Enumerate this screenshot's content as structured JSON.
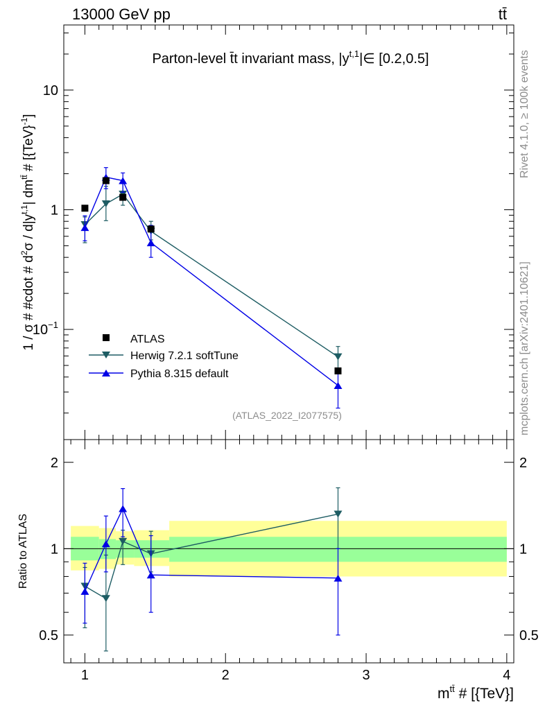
{
  "header": {
    "energy_label": "13000 GeV pp",
    "process_label": "tt̄"
  },
  "side_labels": {
    "rivet": "Rivet 4.1.0, ≥ 100k events",
    "mcplots": "mcplots.cern.ch [arXiv:2401.10621]"
  },
  "chart_data": [
    {
      "type": "line",
      "panel": "main",
      "title": "Parton-level t̄t invariant mass, |y^{t,1}| ∈ [0.2,0.5]",
      "title_parts": {
        "main": "Parton-level t̄t invariant mass, |y",
        "sup": "t,1",
        "tail": "|∈ [0.2,0.5]"
      },
      "ylabel": "1 / σ # #cdot # d²σ / d|y^{t,1}| dm^{tt̄} # [{TeV}⁻¹]",
      "ylabel_parts": {
        "a": "1 / σ # #cdot # d",
        "sup2": "2",
        "b": "σ / d|y",
        "sup_t1": "t,1",
        "c": "| dm",
        "sup_tt": "tt̄",
        "d": " # [{TeV}",
        "sup_m1": "-1",
        "e": "]"
      },
      "xlim": [
        0.85,
        4.05
      ],
      "ylim": [
        0.012,
        35
      ],
      "yscale": "log",
      "yticks": [
        {
          "value": 10,
          "label": "10",
          "sup": ""
        },
        {
          "value": 1,
          "label": "1",
          "sup": ""
        },
        {
          "value": 0.1,
          "label": "10",
          "sup": "−1"
        }
      ],
      "watermark": "(ATLAS_2022_I2077575)",
      "legend_position": "lower-left",
      "series": [
        {
          "name": "ATLAS",
          "color": "#000000",
          "marker": "square",
          "x": [
            1.0,
            1.15,
            1.27,
            1.47,
            2.8
          ],
          "y": [
            1.03,
            1.75,
            1.27,
            0.69,
            0.045
          ],
          "err_lo": [
            0,
            0,
            0,
            0,
            0
          ],
          "err_hi": [
            0,
            0,
            0,
            0,
            0
          ]
        },
        {
          "name": "Herwig 7.2.1 softTune",
          "color": "#1d5c63",
          "marker": "triangle-down",
          "x": [
            1.0,
            1.15,
            1.27,
            1.47,
            2.8
          ],
          "y": [
            0.75,
            1.12,
            1.35,
            0.66,
            0.059
          ],
          "err_lo": [
            0.22,
            0.31,
            0.26,
            0.1,
            0.013
          ],
          "err_hi": [
            0.12,
            0.45,
            0.33,
            0.14,
            0.013
          ]
        },
        {
          "name": "Pythia 8.315 default",
          "color": "#0000e6",
          "marker": "triangle-up",
          "x": [
            1.0,
            1.15,
            1.27,
            1.47,
            2.8
          ],
          "y": [
            0.71,
            1.87,
            1.75,
            0.53,
            0.034
          ],
          "err_lo": [
            0.16,
            0.37,
            0.35,
            0.13,
            0.012
          ],
          "err_hi": [
            0.18,
            0.38,
            0.28,
            0.21,
            0.01
          ]
        }
      ]
    },
    {
      "type": "line",
      "panel": "ratio",
      "ylabel": "Ratio to ATLAS",
      "xlabel_parts": {
        "a": "m",
        "sup": "tt̄",
        "b": " # [{TeV}]"
      },
      "xlim": [
        0.85,
        4.05
      ],
      "ylim": [
        0.4,
        2.4
      ],
      "yscale": "log",
      "xticks": [
        {
          "value": 1,
          "label": "1"
        },
        {
          "value": 2,
          "label": "2"
        },
        {
          "value": 3,
          "label": "3"
        },
        {
          "value": 4,
          "label": "4"
        }
      ],
      "yticks": [
        {
          "value": 0.5,
          "label": "0.5"
        },
        {
          "value": 1,
          "label": "1"
        },
        {
          "value": 2,
          "label": "2"
        }
      ],
      "bands": [
        {
          "x0": 0.9,
          "x1": 1.1,
          "outer": [
            0.84,
            1.2
          ],
          "inner": [
            0.91,
            1.1
          ]
        },
        {
          "x0": 1.1,
          "x1": 1.22,
          "outer": [
            0.85,
            1.18
          ],
          "inner": [
            0.92,
            1.08
          ]
        },
        {
          "x0": 1.22,
          "x1": 1.35,
          "outer": [
            0.88,
            1.15
          ],
          "inner": [
            0.93,
            1.07
          ]
        },
        {
          "x0": 1.35,
          "x1": 1.6,
          "outer": [
            0.87,
            1.16
          ],
          "inner": [
            0.93,
            1.07
          ]
        },
        {
          "x0": 1.6,
          "x1": 4.0,
          "outer": [
            0.8,
            1.25
          ],
          "inner": [
            0.9,
            1.1
          ]
        }
      ],
      "band_colors": {
        "outer": "#ffff99",
        "inner": "#99ff99"
      },
      "series": [
        {
          "name": "Herwig 7.2.1 softTune",
          "color": "#1d5c63",
          "marker": "triangle-down",
          "x": [
            1.0,
            1.15,
            1.27,
            1.47,
            2.8
          ],
          "y": [
            0.74,
            0.67,
            1.06,
            0.96,
            1.32
          ],
          "err_lo": [
            0.21,
            0.23,
            0.18,
            0.13,
            0.32
          ],
          "err_hi": [
            0.12,
            0.28,
            0.1,
            0.19,
            0.31
          ]
        },
        {
          "name": "Pythia 8.315 default",
          "color": "#0000e6",
          "marker": "triangle-up",
          "x": [
            1.0,
            1.15,
            1.27,
            1.47,
            2.8
          ],
          "y": [
            0.71,
            1.04,
            1.38,
            0.81,
            0.79
          ],
          "err_lo": [
            0.16,
            0.21,
            0.28,
            0.21,
            0.29
          ],
          "err_hi": [
            0.18,
            0.26,
            0.24,
            0.3,
            0.21
          ]
        }
      ]
    }
  ]
}
